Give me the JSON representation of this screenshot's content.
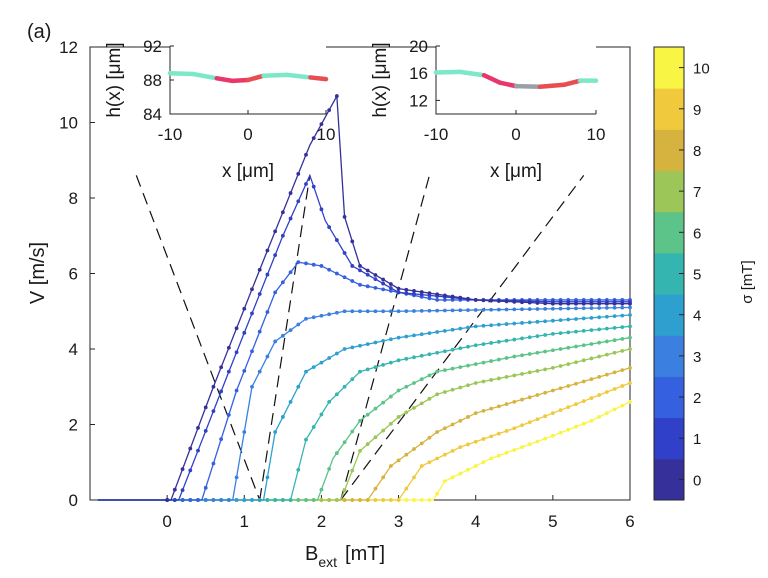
{
  "panel_label": "(a)",
  "chart_data": [
    {
      "type": "line",
      "xlabel": "B",
      "xlabel_subscript": "ext",
      "xlabel_unit": "[mT]",
      "ylabel": "V [m/s]",
      "xlim": [
        -1,
        6
      ],
      "ylim": [
        0,
        12
      ],
      "xticks": [
        "0",
        "1",
        "2",
        "3",
        "4",
        "5",
        "6"
      ],
      "yticks": [
        "0",
        "2",
        "4",
        "6",
        "8",
        "10",
        "12"
      ],
      "grid": false,
      "series": [
        {
          "sigma": 0,
          "points": [
            [
              -0.9,
              0
            ],
            [
              0.05,
              0
            ],
            [
              0.6,
              3
            ],
            [
              1.2,
              6.1
            ],
            [
              1.85,
              9.4
            ],
            [
              2.2,
              10.7
            ],
            [
              2.3,
              7.5
            ],
            [
              2.5,
              6.2
            ],
            [
              3.0,
              5.6
            ],
            [
              4.0,
              5.3
            ],
            [
              5.0,
              5.2
            ],
            [
              6.0,
              5.2
            ]
          ]
        },
        {
          "sigma": 1,
          "points": [
            [
              -0.9,
              0
            ],
            [
              0.15,
              0
            ],
            [
              0.8,
              3.4
            ],
            [
              1.5,
              7.0
            ],
            [
              1.85,
              8.6
            ],
            [
              2.05,
              7.4
            ],
            [
              2.4,
              6.2
            ],
            [
              3.0,
              5.5
            ],
            [
              4.0,
              5.3
            ],
            [
              5.0,
              5.25
            ],
            [
              6.0,
              5.25
            ]
          ]
        },
        {
          "sigma": 2,
          "points": [
            [
              -0.9,
              0
            ],
            [
              0.45,
              0
            ],
            [
              0.9,
              2.9
            ],
            [
              1.4,
              5.5
            ],
            [
              1.7,
              6.3
            ],
            [
              2.0,
              6.2
            ],
            [
              2.5,
              5.7
            ],
            [
              3.5,
              5.3
            ],
            [
              6.0,
              5.3
            ]
          ]
        },
        {
          "sigma": 3,
          "points": [
            [
              -0.9,
              0
            ],
            [
              0.85,
              0
            ],
            [
              1.1,
              3.0
            ],
            [
              1.4,
              4.2
            ],
            [
              1.8,
              4.8
            ],
            [
              2.3,
              5.0
            ],
            [
              3.0,
              5.0
            ],
            [
              6.0,
              5.1
            ]
          ]
        },
        {
          "sigma": 4,
          "points": [
            [
              -0.9,
              0
            ],
            [
              1.25,
              0
            ],
            [
              1.4,
              1.8
            ],
            [
              1.8,
              3.4
            ],
            [
              2.3,
              4.0
            ],
            [
              3.0,
              4.3
            ],
            [
              4.0,
              4.6
            ],
            [
              6.0,
              4.9
            ]
          ]
        },
        {
          "sigma": 5,
          "points": [
            [
              -0.9,
              0
            ],
            [
              1.6,
              0
            ],
            [
              1.8,
              1.6
            ],
            [
              2.1,
              2.6
            ],
            [
              2.5,
              3.4
            ],
            [
              3.0,
              3.7
            ],
            [
              4.0,
              4.1
            ],
            [
              5.0,
              4.4
            ],
            [
              6.0,
              4.6
            ]
          ]
        },
        {
          "sigma": 6,
          "points": [
            [
              -0.9,
              0
            ],
            [
              1.95,
              0
            ],
            [
              2.15,
              1.1
            ],
            [
              2.5,
              2.1
            ],
            [
              3.0,
              2.9
            ],
            [
              3.5,
              3.4
            ],
            [
              4.5,
              3.8
            ],
            [
              6.0,
              4.3
            ]
          ]
        },
        {
          "sigma": 7,
          "points": [
            [
              -0.9,
              0
            ],
            [
              2.25,
              0
            ],
            [
              2.5,
              1.3
            ],
            [
              3.0,
              2.2
            ],
            [
              3.5,
              2.8
            ],
            [
              4.0,
              3.1
            ],
            [
              5.0,
              3.5
            ],
            [
              6.0,
              4.0
            ]
          ]
        },
        {
          "sigma": 8,
          "points": [
            [
              -0.9,
              0
            ],
            [
              2.6,
              0
            ],
            [
              2.9,
              0.9
            ],
            [
              3.5,
              1.8
            ],
            [
              4.0,
              2.3
            ],
            [
              5.0,
              2.9
            ],
            [
              6.0,
              3.5
            ]
          ]
        },
        {
          "sigma": 9,
          "points": [
            [
              -0.9,
              0
            ],
            [
              3.0,
              0
            ],
            [
              3.3,
              0.9
            ],
            [
              3.8,
              1.4
            ],
            [
              4.5,
              1.9
            ],
            [
              5.0,
              2.3
            ],
            [
              6.0,
              3.1
            ]
          ]
        },
        {
          "sigma": 10,
          "points": [
            [
              -0.9,
              0
            ],
            [
              3.45,
              0
            ],
            [
              3.6,
              0.5
            ],
            [
              4.2,
              1.1
            ],
            [
              5.0,
              1.7
            ],
            [
              5.5,
              2.1
            ],
            [
              6.0,
              2.6
            ]
          ]
        }
      ],
      "dashed_lines": [
        [
          [
            -0.4,
            8.6
          ],
          [
            1.2,
            0
          ]
        ],
        [
          [
            1.2,
            0
          ],
          [
            1.85,
            8.6
          ]
        ],
        [
          [
            2.25,
            0
          ],
          [
            3.4,
            8.6
          ]
        ],
        [
          [
            2.25,
            0
          ],
          [
            5.4,
            8.6
          ]
        ]
      ]
    },
    {
      "type": "line",
      "xlabel": "x [μm]",
      "ylabel": "h(x) [μm]",
      "xlim": [
        -10,
        10
      ],
      "ylim": [
        84,
        92
      ],
      "xticks": [
        "-10",
        "0",
        "10"
      ],
      "yticks": [
        "84",
        "88",
        "92"
      ],
      "profile": [
        [
          -10,
          88.8
        ],
        [
          -7,
          88.7
        ],
        [
          -4,
          88.2
        ],
        [
          -2,
          87.9
        ],
        [
          0,
          88.0
        ],
        [
          2,
          88.5
        ],
        [
          5,
          88.6
        ],
        [
          8,
          88.3
        ],
        [
          10,
          88.1
        ]
      ],
      "segment_colors": [
        "#7de8c8",
        "#e8386b",
        "#e84d52",
        "#7de8c8",
        "#e84d52"
      ]
    },
    {
      "type": "line",
      "xlabel": "x [μm]",
      "ylabel": "h(x) [μm]",
      "xlim": [
        -10,
        10
      ],
      "ylim": [
        10,
        20
      ],
      "xticks": [
        "-10",
        "0",
        "10"
      ],
      "yticks": [
        "12",
        "16",
        "20"
      ],
      "profile": [
        [
          -10,
          16.1
        ],
        [
          -7,
          16.2
        ],
        [
          -4,
          15.7
        ],
        [
          -2,
          14.6
        ],
        [
          0,
          14.1
        ],
        [
          3,
          14.0
        ],
        [
          6,
          14.3
        ],
        [
          8,
          14.9
        ],
        [
          10,
          14.9
        ]
      ],
      "segment_colors": [
        "#7de8c8",
        "#e8386b",
        "#9aa0a8",
        "#e84d52",
        "#7de8c8"
      ]
    }
  ],
  "colorbar": {
    "label": "σ [mT]",
    "ticks": [
      "0",
      "1",
      "2",
      "3",
      "4",
      "5",
      "6",
      "7",
      "8",
      "9",
      "10"
    ],
    "colors": [
      "#35309a",
      "#3040c8",
      "#3560e0",
      "#3b80e0",
      "#2ea0d0",
      "#35b5b0",
      "#5cc389",
      "#9cc657",
      "#d6b33e",
      "#f0c93c",
      "#f8f545"
    ]
  }
}
